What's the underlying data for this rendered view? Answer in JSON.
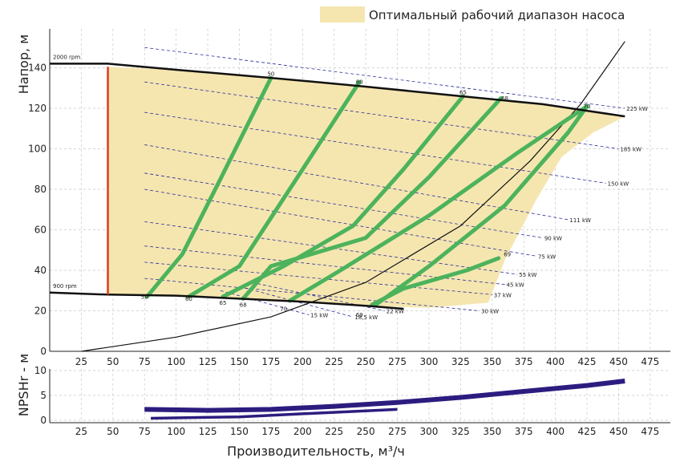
{
  "chart_data": [
    {
      "type": "line",
      "panel": "head",
      "ylabel": "Напор, м",
      "xlim": [
        0,
        500
      ],
      "ylim": [
        0,
        155
      ],
      "x_ticks": [
        25,
        50,
        75,
        100,
        125,
        150,
        175,
        200,
        225,
        250,
        275,
        300,
        325,
        350,
        375,
        400,
        425,
        450,
        475
      ],
      "y_ticks": [
        0,
        20,
        40,
        60,
        80,
        100,
        120,
        140
      ],
      "grid": "dashed",
      "legend": {
        "label": "Оптимальный рабочий диапазон насоса",
        "color": "#f5e6b0",
        "placement": "top-right"
      },
      "optimal_range": {
        "color": "#f5e6b0",
        "points": [
          [
            46,
            140.5
          ],
          [
            100,
            139
          ],
          [
            175,
            135
          ],
          [
            245,
            131
          ],
          [
            325,
            125.5
          ],
          [
            390,
            122
          ],
          [
            425,
            119
          ],
          [
            455,
            116
          ],
          [
            430,
            108
          ],
          [
            405,
            96
          ],
          [
            385,
            75
          ],
          [
            360,
            45
          ],
          [
            347,
            24
          ],
          [
            300,
            21.5
          ],
          [
            250,
            22.5
          ],
          [
            200,
            24.5
          ],
          [
            150,
            26
          ],
          [
            100,
            27.5
          ],
          [
            46,
            28
          ]
        ]
      },
      "min_flow_line": {
        "x": 46,
        "y_from": 28,
        "y_to": 140.5,
        "color": "#e03c1c"
      },
      "speed_curves": [
        {
          "label": "2000 rpm",
          "color": "#111111",
          "points": [
            [
              0,
              142
            ],
            [
              46,
              142
            ],
            [
              100,
              139
            ],
            [
              175,
              135
            ],
            [
              245,
              131
            ],
            [
              325,
              126
            ],
            [
              390,
              122
            ],
            [
              455,
              116
            ]
          ]
        },
        {
          "label": "900 rpm",
          "color": "#111111",
          "points": [
            [
              0,
              29
            ],
            [
              46,
              28
            ],
            [
              100,
              27.5
            ],
            [
              150,
              26
            ],
            [
              200,
              24.5
            ],
            [
              250,
              22.5
            ],
            [
              280,
              21
            ]
          ]
        }
      ],
      "system_curve": {
        "color": "#111111",
        "points": [
          [
            25,
            0
          ],
          [
            100,
            7
          ],
          [
            175,
            17
          ],
          [
            250,
            34
          ],
          [
            325,
            62
          ],
          [
            380,
            94
          ],
          [
            420,
            122
          ],
          [
            455,
            153
          ]
        ]
      },
      "efficiency_curves": [
        {
          "label": "50",
          "color": "#4cb35c",
          "label_top": [
            175,
            136
          ],
          "label_bottom": [
            75,
            26
          ],
          "points": [
            [
              77,
              27
            ],
            [
              105,
              48
            ],
            [
              135,
              85
            ],
            [
              175,
              135
            ]
          ]
        },
        {
          "label": "60",
          "color": "#4cb35c",
          "label_top": [
            245,
            132
          ],
          "label_bottom": [
            110,
            25
          ],
          "points": [
            [
              110,
              27
            ],
            [
              150,
              42
            ],
            [
              195,
              85
            ],
            [
              245,
              133
            ]
          ]
        },
        {
          "label": "65",
          "color": "#4cb35c",
          "label_top": [
            327,
            127
          ],
          "label_bottom": [
            137,
            23
          ],
          "points": [
            [
              137,
              27
            ],
            [
              185,
              42
            ],
            [
              240,
              62
            ],
            [
              280,
              90
            ],
            [
              327,
              126
            ]
          ]
        },
        {
          "label": "68",
          "color": "#4cb35c",
          "label_top": [
            360,
            124
          ],
          "label_bottom": [
            153,
            22
          ],
          "points": [
            [
              153,
              26
            ],
            [
              175,
              42
            ],
            [
              250,
              56
            ],
            [
              300,
              86
            ],
            [
              357,
              125
            ]
          ]
        },
        {
          "label": "70",
          "color": "#4cb35c",
          "label_top": [
            425,
            120
          ],
          "label_bottom": [
            185,
            20
          ],
          "points": [
            [
              190,
              25
            ],
            [
              230,
              40
            ],
            [
              300,
              67
            ],
            [
              370,
              98
            ],
            [
              425,
              121
            ],
            [
              410,
              108
            ],
            [
              360,
              72
            ],
            [
              300,
              42
            ],
            [
              258,
              23
            ]
          ]
        },
        {
          "label": "69",
          "color": "#4cb35c",
          "label_top": [
            362,
            47
          ],
          "label_bottom": [
            245,
            17
          ],
          "points": [
            [
              255,
              23
            ],
            [
              280,
              31
            ],
            [
              330,
              40
            ],
            [
              355,
              46
            ]
          ]
        }
      ],
      "power_labels": [
        "225 kW",
        "185 kW",
        "150 kW",
        "111 kW",
        "90 kW",
        "75 kW",
        "55 kW",
        "45 kW",
        "37 kW",
        "30 kW",
        "22 kW",
        "18,5 kW",
        "15 kW"
      ],
      "power_lines": [
        {
          "label": "225 kW",
          "from": [
            75,
            150
          ],
          "to": [
            455,
            120
          ]
        },
        {
          "label": "185 kW",
          "from": [
            75,
            133
          ],
          "to": [
            450,
            100
          ]
        },
        {
          "label": "150 kW",
          "from": [
            75,
            118
          ],
          "to": [
            440,
            83
          ]
        },
        {
          "label": "111 kW",
          "from": [
            75,
            102
          ],
          "to": [
            410,
            65
          ]
        },
        {
          "label": "90 kW",
          "from": [
            75,
            88
          ],
          "to": [
            390,
            56
          ]
        },
        {
          "label": "75 kW",
          "from": [
            75,
            80
          ],
          "to": [
            385,
            47
          ]
        },
        {
          "label": "55 kW",
          "from": [
            75,
            64
          ],
          "to": [
            370,
            38
          ]
        },
        {
          "label": "45 kW",
          "from": [
            75,
            52
          ],
          "to": [
            360,
            33
          ]
        },
        {
          "label": "37 kW",
          "from": [
            75,
            44
          ],
          "to": [
            350,
            28
          ]
        },
        {
          "label": "30 kW",
          "from": [
            75,
            36
          ],
          "to": [
            340,
            20
          ]
        },
        {
          "label": "22 kW",
          "from": [
            160,
            34
          ],
          "to": [
            265,
            20
          ]
        },
        {
          "label": "18,5 kW",
          "from": [
            150,
            32
          ],
          "to": [
            240,
            17
          ]
        },
        {
          "label": "15 kW",
          "from": [
            135,
            30
          ],
          "to": [
            205,
            18
          ]
        }
      ]
    },
    {
      "type": "line",
      "panel": "npsh",
      "ylabel": "NPSHr - м",
      "xlabel": "Производительность, м³/ч",
      "xlim": [
        0,
        500
      ],
      "ylim": [
        0,
        10
      ],
      "x_ticks": [
        25,
        50,
        75,
        100,
        125,
        150,
        175,
        200,
        225,
        250,
        275,
        300,
        325,
        350,
        375,
        400,
        425,
        450,
        475
      ],
      "y_ticks": [
        0,
        5,
        10
      ],
      "series": [
        {
          "color": "#2d1c7f",
          "points": [
            [
              75,
              2.2
            ],
            [
              125,
              2.0
            ],
            [
              175,
              2.2
            ],
            [
              225,
              2.8
            ],
            [
              275,
              3.6
            ],
            [
              325,
              4.6
            ],
            [
              375,
              5.8
            ],
            [
              425,
              7.0
            ],
            [
              455,
              7.9
            ]
          ]
        },
        {
          "color": "#2d1c7f",
          "points": [
            [
              80,
              0.4
            ],
            [
              150,
              0.7
            ],
            [
              200,
              1.3
            ],
            [
              250,
              1.9
            ],
            [
              275,
              2.2
            ]
          ]
        }
      ]
    }
  ]
}
